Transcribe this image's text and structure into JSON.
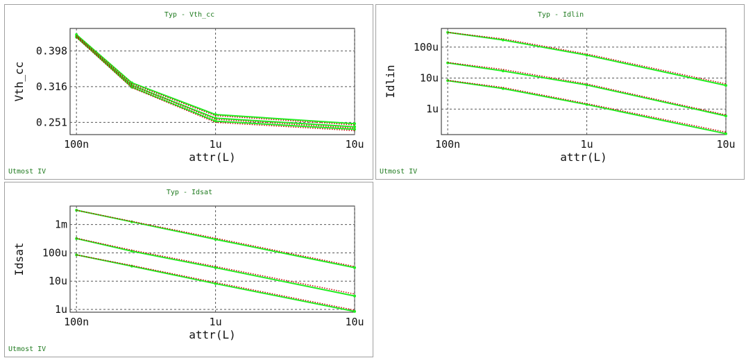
{
  "footer_label": "Utmost IV",
  "colors": {
    "measured": "#c00000",
    "simulated": "#22ee22",
    "grid": "#555555",
    "title": "#1e7a1e"
  },
  "chart_data": [
    {
      "type": "line",
      "title": "Typ - Vth_cc",
      "xlabel": "attr(L)",
      "ylabel": "Vth_cc",
      "xscale": "log",
      "yscale": "log",
      "xlim": [
        0.09,
        10
      ],
      "ylim": [
        0.232,
        0.46
      ],
      "xticks": [
        0.1,
        1,
        10
      ],
      "xticklabels": [
        "100n",
        "1u",
        "10u"
      ],
      "yticks": [
        0.251,
        0.316,
        0.398
      ],
      "yticklabels": [
        "0.251",
        "0.316",
        "0.398"
      ],
      "grid": true,
      "x": [
        0.1,
        0.25,
        1,
        10
      ],
      "series": [
        {
          "kind": "measured",
          "values": [
            0.44,
            0.322,
            0.262,
            0.247
          ]
        },
        {
          "kind": "measured",
          "values": [
            0.437,
            0.318,
            0.256,
            0.242
          ]
        },
        {
          "kind": "measured",
          "values": [
            0.434,
            0.314,
            0.251,
            0.238
          ]
        },
        {
          "kind": "simulated",
          "values": [
            0.442,
            0.324,
            0.264,
            0.249
          ]
        },
        {
          "kind": "simulated",
          "values": [
            0.438,
            0.319,
            0.258,
            0.244
          ]
        },
        {
          "kind": "simulated",
          "values": [
            0.435,
            0.315,
            0.253,
            0.24
          ]
        }
      ]
    },
    {
      "type": "line",
      "title": "Typ - Idlin",
      "xlabel": "attr(L)",
      "ylabel": "Idlin",
      "xscale": "log",
      "yscale": "log",
      "xlim": [
        0.09,
        10
      ],
      "ylim": [
        0.15,
        400
      ],
      "xticks": [
        0.1,
        1,
        10
      ],
      "xticklabels": [
        "100n",
        "1u",
        "10u"
      ],
      "yticks": [
        1,
        10,
        100
      ],
      "yticklabels": [
        "1u",
        "10u",
        "100u"
      ],
      "grid": true,
      "x": [
        0.1,
        0.25,
        1,
        10
      ],
      "series": [
        {
          "kind": "measured",
          "values": [
            300,
            185,
            60,
            6.5
          ]
        },
        {
          "kind": "measured",
          "values": [
            32,
            19,
            6.5,
            0.65
          ]
        },
        {
          "kind": "measured",
          "values": [
            8.5,
            5.0,
            1.5,
            0.18
          ]
        },
        {
          "kind": "simulated",
          "values": [
            300,
            170,
            55,
            5.8
          ]
        },
        {
          "kind": "simulated",
          "values": [
            31,
            17,
            6.0,
            0.6
          ]
        },
        {
          "kind": "simulated",
          "values": [
            8.3,
            4.6,
            1.4,
            0.16
          ]
        }
      ]
    },
    {
      "type": "line",
      "title": "Typ - Idsat",
      "xlabel": "attr(L)",
      "ylabel": "Idsat",
      "xscale": "log",
      "yscale": "log",
      "xlim": [
        0.09,
        10
      ],
      "ylim": [
        0.8,
        4500
      ],
      "xticks": [
        0.1,
        1,
        10
      ],
      "xticklabels": [
        "100n",
        "1u",
        "10u"
      ],
      "yticks": [
        1,
        10,
        100,
        1000
      ],
      "yticklabels": [
        "1u",
        "10u",
        "100u",
        "1m"
      ],
      "grid": true,
      "x": [
        0.1,
        0.25,
        1,
        10
      ],
      "series": [
        {
          "kind": "measured",
          "values": [
            3200,
            1300,
            330,
            33
          ]
        },
        {
          "kind": "measured",
          "values": [
            330,
            125,
            33,
            3.5
          ]
        },
        {
          "kind": "measured",
          "values": [
            85,
            36,
            9.0,
            0.95
          ]
        },
        {
          "kind": "simulated",
          "values": [
            3200,
            1250,
            300,
            30
          ]
        },
        {
          "kind": "simulated",
          "values": [
            320,
            115,
            30,
            3.0
          ]
        },
        {
          "kind": "simulated",
          "values": [
            85,
            34,
            8.2,
            0.85
          ]
        }
      ]
    }
  ]
}
